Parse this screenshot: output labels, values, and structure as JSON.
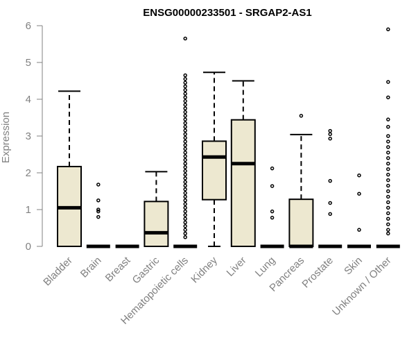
{
  "chart_data": {
    "type": "box",
    "title": "ENSG00000233501 - SRGAP2-AS1",
    "ylabel": "Expression",
    "xlabel": "",
    "ylim": [
      0,
      6
    ],
    "yticks": [
      "0",
      "1",
      "2",
      "3",
      "4",
      "5",
      "6"
    ],
    "colors": {
      "box_fill": "#EDE8D0",
      "box_stroke": "#000000",
      "axis": "#808080"
    },
    "categories": [
      "Bladder",
      "Brain",
      "Breast",
      "Gastric",
      "Hematopoietic cells",
      "Kidney",
      "Liver",
      "Lung",
      "Pancreas",
      "Prostate",
      "Skin",
      "Unknown / Other"
    ],
    "boxes": [
      {
        "name": "Bladder",
        "min": 0,
        "q1": 0,
        "median": 1.05,
        "q3": 2.17,
        "max": 4.22,
        "outliers": []
      },
      {
        "name": "Brain",
        "min": 0,
        "q1": 0,
        "median": 0,
        "q3": 0,
        "max": 0,
        "outliers": [
          0.8,
          0.95,
          1.0,
          1.25,
          1.68
        ]
      },
      {
        "name": "Breast",
        "min": 0,
        "q1": 0,
        "median": 0,
        "q3": 0,
        "max": 0,
        "outliers": []
      },
      {
        "name": "Gastric",
        "min": 0,
        "q1": 0,
        "median": 0.37,
        "q3": 1.22,
        "max": 2.03,
        "outliers": []
      },
      {
        "name": "Hematopoietic cells",
        "min": 0,
        "q1": 0,
        "median": 0,
        "q3": 0,
        "max": 0,
        "outliers": [
          0.25,
          0.35,
          0.45,
          0.55,
          0.65,
          0.75,
          0.85,
          0.95,
          1.05,
          1.15,
          1.25,
          1.35,
          1.45,
          1.55,
          1.65,
          1.75,
          1.85,
          1.95,
          2.05,
          2.15,
          2.25,
          2.35,
          2.45,
          2.55,
          2.65,
          2.75,
          2.85,
          2.95,
          3.05,
          3.15,
          3.25,
          3.35,
          3.45,
          3.55,
          3.65,
          3.75,
          3.85,
          3.95,
          4.05,
          4.15,
          4.25,
          4.35,
          4.45,
          4.55,
          4.65,
          5.65
        ]
      },
      {
        "name": "Kidney",
        "min": 0,
        "q1": 1.27,
        "median": 2.43,
        "q3": 2.86,
        "max": 4.73,
        "outliers": []
      },
      {
        "name": "Liver",
        "min": 0,
        "q1": 0,
        "median": 2.25,
        "q3": 3.44,
        "max": 4.5,
        "outliers": []
      },
      {
        "name": "Lung",
        "min": 0,
        "q1": 0,
        "median": 0,
        "q3": 0,
        "max": 0,
        "outliers": [
          0.78,
          0.95,
          1.64,
          2.12
        ]
      },
      {
        "name": "Pancreas",
        "min": 0,
        "q1": 0,
        "median": 0,
        "q3": 1.28,
        "max": 3.04,
        "outliers": [
          3.55
        ]
      },
      {
        "name": "Prostate",
        "min": 0,
        "q1": 0,
        "median": 0,
        "q3": 0,
        "max": 0,
        "outliers": [
          0.88,
          1.18,
          1.78,
          2.93,
          3.05,
          3.14
        ]
      },
      {
        "name": "Skin",
        "min": 0,
        "q1": 0,
        "median": 0,
        "q3": 0,
        "max": 0,
        "outliers": [
          0.45,
          1.43,
          1.93
        ]
      },
      {
        "name": "Unknown / Other",
        "min": 0,
        "q1": 0,
        "median": 0,
        "q3": 0,
        "max": 0,
        "outliers": [
          0.35,
          0.45,
          0.6,
          0.75,
          0.9,
          1.05,
          1.2,
          1.35,
          1.5,
          1.65,
          1.8,
          1.95,
          2.1,
          2.25,
          2.4,
          2.55,
          2.7,
          2.85,
          3.0,
          3.25,
          3.45,
          4.05,
          4.47,
          5.9
        ]
      }
    ]
  }
}
